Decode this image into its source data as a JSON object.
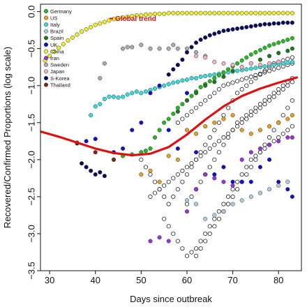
{
  "chart_data": {
    "type": "scatter",
    "xlabel": "Days since outbreak",
    "ylabel": "Recovered/Confirmed Proportions (log scale)",
    "xlim": [
      28,
      85
    ],
    "ylim": [
      -3.5,
      0.1
    ],
    "x_ticks": [
      30,
      40,
      50,
      60,
      70,
      80
    ],
    "y_ticks": [
      0.0,
      -0.5,
      -1.0,
      -1.5,
      -2.0,
      -2.5,
      -3.0,
      -3.5
    ],
    "x_tick_labels": [
      "30",
      "40",
      "50",
      "60",
      "70",
      "80"
    ],
    "y_tick_labels": [
      "0.0",
      "−0.5",
      "−1.0",
      "−1.5",
      "−2.0",
      "−2.5",
      "−3.0",
      "−3.5"
    ],
    "legend_position": "top-left",
    "legend": [
      {
        "name": "Germany",
        "color": "#22bb22"
      },
      {
        "name": "US",
        "color": "#e8a020"
      },
      {
        "name": "Italy",
        "color": "#33dddd"
      },
      {
        "name": "Brazil",
        "color": "#aaccdd"
      },
      {
        "name": "Spain",
        "color": "#1a7a1a"
      },
      {
        "name": "UK",
        "color": "#1010cc"
      },
      {
        "name": "China",
        "color": "#eeee22"
      },
      {
        "name": "Iran",
        "color": "#9933dd"
      },
      {
        "name": "Sweden",
        "color": "#aaaaaa"
      },
      {
        "name": "Japan",
        "color": "#f0b0c8"
      },
      {
        "name": "S-Korea",
        "color": "#0a0a60"
      },
      {
        "name": "Thailand",
        "color": "#7a2a10"
      }
    ],
    "annotation": "Global trend",
    "trend_color": "#dd1111",
    "trend": {
      "x": [
        28,
        32,
        36,
        40,
        44,
        48,
        52,
        56,
        60,
        64,
        68,
        72,
        76,
        80,
        84
      ],
      "y": [
        -1.62,
        -1.69,
        -1.77,
        -1.85,
        -1.91,
        -1.94,
        -1.92,
        -1.83,
        -1.66,
        -1.46,
        -1.28,
        -1.14,
        -1.04,
        -0.96,
        -0.89
      ]
    },
    "series": [
      {
        "name": "China",
        "x": [
          29,
          30,
          31,
          32,
          33,
          34,
          35,
          36,
          37,
          38,
          39,
          40,
          41,
          42,
          43,
          44,
          45,
          46,
          47,
          48,
          49,
          50,
          51,
          52,
          53,
          54,
          55,
          56,
          57,
          58,
          59,
          60,
          61,
          62,
          63,
          64,
          65,
          66,
          67,
          68,
          69,
          70,
          71,
          72,
          73,
          74,
          75,
          76,
          77,
          78,
          79,
          80,
          81,
          82,
          83
        ],
        "y": [
          -0.66,
          -0.6,
          -0.54,
          -0.49,
          -0.44,
          -0.39,
          -0.35,
          -0.31,
          -0.27,
          -0.24,
          -0.21,
          -0.18,
          -0.16,
          -0.14,
          -0.12,
          -0.1,
          -0.09,
          -0.08,
          -0.07,
          -0.06,
          -0.05,
          -0.05,
          -0.04,
          -0.04,
          -0.03,
          -0.03,
          -0.03,
          -0.02,
          -0.02,
          -0.02,
          -0.02,
          -0.02,
          -0.02,
          -0.02,
          -0.02,
          -0.02,
          -0.02,
          -0.02,
          -0.02,
          -0.02,
          -0.02,
          -0.02,
          -0.02,
          -0.02,
          -0.02,
          -0.02,
          -0.02,
          -0.02,
          -0.02,
          -0.02,
          -0.02,
          -0.02,
          -0.02,
          -0.02,
          -0.02
        ]
      },
      {
        "name": "S-Korea",
        "x": [
          36,
          37,
          38,
          39,
          40,
          41,
          42,
          56,
          57,
          58,
          59,
          60,
          61,
          62,
          63,
          64,
          65,
          66,
          67,
          68,
          69,
          70,
          71,
          72,
          73,
          74,
          75,
          76,
          77,
          78,
          79,
          80,
          81,
          82,
          83
        ],
        "y": [
          -1.78,
          -2.05,
          -2.1,
          -2.15,
          -2.2,
          -2.17,
          -2.22,
          -0.85,
          -0.78,
          -0.72,
          -0.65,
          -0.55,
          -0.48,
          -0.42,
          -0.38,
          -0.35,
          -0.32,
          -0.3,
          -0.28,
          -0.26,
          -0.25,
          -0.24,
          -0.23,
          -0.22,
          -0.21,
          -0.2,
          -0.19,
          -0.18,
          -0.17,
          -0.17,
          -0.16,
          -0.16,
          -0.15,
          -0.15,
          -0.15
        ]
      },
      {
        "name": "Italy",
        "x": [
          39,
          40,
          41,
          42,
          43,
          44,
          45,
          46,
          47,
          48,
          49,
          50,
          51,
          52,
          53,
          54,
          55,
          56,
          57,
          58,
          59,
          60,
          61,
          62,
          63,
          64,
          65,
          66,
          67,
          68,
          69,
          70,
          71,
          72,
          73,
          74,
          75,
          76,
          77,
          78,
          79,
          80,
          81,
          82,
          83
        ],
        "y": [
          -1.4,
          -1.28,
          -1.25,
          -1.18,
          -1.15,
          -1.15,
          -1.16,
          -1.15,
          -1.12,
          -1.1,
          -1.08,
          -1.1,
          -1.08,
          -1.06,
          -1.04,
          -1.02,
          -1.0,
          -0.98,
          -0.96,
          -0.95,
          -0.93,
          -0.92,
          -0.9,
          -0.9,
          -0.88,
          -0.87,
          -0.86,
          -0.85,
          -0.84,
          -0.83,
          -0.82,
          -0.81,
          -0.8,
          -0.79,
          -0.78,
          -0.77,
          -0.76,
          -0.75,
          -0.74,
          -0.73,
          -0.72,
          -0.71,
          -0.7,
          -0.69,
          -0.68
        ]
      },
      {
        "name": "Germany",
        "x": [
          44,
          46,
          48,
          50,
          51,
          52,
          53,
          54,
          55,
          56,
          57,
          58,
          59,
          60,
          61,
          62,
          63,
          64,
          65,
          66,
          67,
          68,
          69,
          70,
          71,
          72,
          73,
          74,
          75,
          76,
          77,
          78,
          79,
          80,
          81,
          82,
          83
        ],
        "y": [
          -2.0,
          -1.95,
          -1.93,
          -1.9,
          -1.88,
          -1.85,
          -1.7,
          -1.6,
          -1.5,
          -1.45,
          -1.38,
          -1.3,
          -1.25,
          -1.2,
          -1.14,
          -1.08,
          -1.02,
          -0.98,
          -0.94,
          -0.9,
          -0.86,
          -0.82,
          -0.78,
          -0.74,
          -0.7,
          -0.66,
          -0.62,
          -0.58,
          -0.55,
          -0.52,
          -0.49,
          -0.46,
          -0.44,
          -0.42,
          -0.4,
          -0.38,
          -0.36
        ]
      },
      {
        "name": "UK",
        "x": [
          38,
          40,
          44,
          46,
          48,
          50,
          52,
          54,
          56,
          58,
          60,
          62,
          64,
          66,
          68,
          70,
          72,
          74,
          76,
          78,
          80,
          82,
          83
        ],
        "y": [
          -1.75,
          -1.72,
          -1.9,
          -1.85,
          -1.6,
          -1.5,
          -1.1,
          -1.0,
          -1.6,
          -1.85,
          -1.1,
          -1.9,
          -2.2,
          -2.2,
          -2.1,
          -2.3,
          -2.3,
          -2.3,
          -2.1,
          -2.0,
          -2.3,
          -2.4,
          -2.5
        ]
      },
      {
        "name": "US",
        "x": [
          50,
          52,
          54,
          56,
          58,
          60,
          62,
          64,
          66,
          68,
          70,
          72,
          74,
          76,
          78,
          80,
          82,
          83
        ],
        "y": [
          -2.2,
          -2.15,
          -2.3,
          -1.95,
          -2.0,
          -1.6,
          -1.65,
          -1.55,
          -1.5,
          -1.45,
          -1.4,
          -1.6,
          -1.65,
          -1.6,
          -1.55,
          -1.5,
          -1.45,
          -1.4
        ]
      },
      {
        "name": "Spain",
        "x": [
          58,
          60,
          62,
          64,
          66,
          68,
          70,
          72,
          74,
          76,
          78,
          80,
          82,
          83
        ],
        "y": [
          -1.35,
          -1.2,
          -1.1,
          -1.0,
          -0.95,
          -0.88,
          -0.8,
          -0.75,
          -0.7,
          -0.65,
          -0.6,
          -0.56,
          -0.53,
          -0.5
        ]
      },
      {
        "name": "Iran",
        "x": [
          52,
          54,
          56,
          60,
          62,
          64,
          66,
          68,
          70,
          72,
          74,
          76,
          78,
          80,
          82,
          83
        ],
        "y": [
          -3.1,
          -3.05,
          -3.1,
          -2.7,
          -2.4,
          -2.2,
          -2.25,
          -2.3,
          -2.35,
          -2.0,
          -1.9,
          -1.85,
          -1.8,
          -1.75,
          -1.7,
          -1.7
        ]
      },
      {
        "name": "Sweden",
        "x": [
          41,
          42,
          46,
          47,
          48,
          50,
          52,
          54,
          56,
          57,
          58,
          60,
          62,
          64
        ],
        "y": [
          -0.9,
          -0.7,
          -0.5,
          -0.48,
          -0.48,
          -0.45,
          -0.5,
          -0.5,
          -0.5,
          -0.45,
          -0.5,
          -0.5,
          -0.55,
          -0.6
        ]
      },
      {
        "name": "Japan",
        "x": [
          62,
          64,
          66,
          68,
          70,
          72,
          74,
          76,
          78,
          80
        ],
        "y": [
          -0.6,
          -0.62,
          -0.68,
          -0.7,
          -0.72,
          -0.75,
          -0.7,
          -0.72,
          -0.7,
          -0.68
        ]
      },
      {
        "name": "Brazil",
        "x": [
          60,
          62,
          64,
          66,
          68,
          70,
          72,
          74,
          76,
          78,
          80,
          82
        ],
        "y": [
          -2.55,
          -2.6,
          -2.8,
          -2.75,
          -2.7,
          -2.6,
          -2.55,
          -2.5,
          -2.45,
          -2.4,
          -2.35,
          -2.3
        ]
      },
      {
        "name": "Thailand",
        "x": [
          36,
          40,
          44
        ],
        "y": [
          -1.77,
          -1.9,
          -2.0
        ]
      }
    ],
    "other_countries": {
      "x": [
        50,
        51,
        52,
        53,
        54,
        55,
        56,
        57,
        58,
        59,
        60,
        61,
        62,
        63,
        64,
        65,
        66,
        67,
        68,
        69,
        70,
        71,
        72,
        73,
        74,
        75,
        76,
        77,
        78,
        79,
        80,
        81,
        82,
        83,
        55,
        56,
        57,
        58,
        59,
        60,
        61,
        62,
        63,
        64,
        65,
        66,
        67,
        68,
        69,
        70,
        71,
        72,
        73,
        74,
        75,
        76,
        77,
        78,
        79,
        80,
        81,
        82,
        83,
        58,
        59,
        60,
        61,
        62,
        63,
        64,
        65,
        66,
        67,
        68,
        69,
        70,
        71,
        72,
        73,
        74,
        75,
        76,
        77,
        78,
        79,
        80,
        81,
        82,
        83,
        60,
        61,
        62,
        63,
        64,
        65,
        66,
        67,
        68,
        69,
        70,
        71,
        72,
        73,
        74,
        75,
        76,
        77,
        78,
        79,
        80,
        81,
        82,
        83,
        62,
        63,
        64,
        65,
        66,
        67,
        68,
        69,
        70,
        71,
        72,
        73,
        74,
        75,
        76,
        77,
        78,
        79,
        80,
        81,
        82,
        83,
        52,
        53,
        54,
        55,
        56,
        57,
        58,
        59,
        60,
        61,
        62,
        63,
        64,
        65,
        66,
        67,
        68,
        69,
        70,
        71,
        72,
        73,
        74,
        75,
        76,
        77,
        78,
        79,
        80,
        81,
        82,
        83
      ],
      "y": [
        -2.0,
        -2.1,
        -2.2,
        -2.3,
        -2.4,
        -2.5,
        -2.6,
        -2.5,
        -2.4,
        -2.3,
        -2.2,
        -2.1,
        -2.0,
        -1.9,
        -1.8,
        -1.7,
        -1.6,
        -1.5,
        -1.4,
        -1.3,
        -1.2,
        -1.1,
        -1.05,
        -1.0,
        -0.95,
        -0.9,
        -0.85,
        -0.8,
        -0.75,
        -0.7,
        -0.68,
        -0.66,
        -0.64,
        -0.62,
        -2.8,
        -2.9,
        -3.0,
        -3.1,
        -3.2,
        -3.3,
        -3.25,
        -3.2,
        -3.1,
        -3.0,
        -2.9,
        -2.8,
        -2.7,
        -2.6,
        -2.5,
        -2.4,
        -2.3,
        -2.2,
        -2.1,
        -2.0,
        -1.95,
        -1.9,
        -1.85,
        -1.8,
        -1.75,
        -1.7,
        -1.65,
        -1.6,
        -1.55,
        -1.5,
        -1.45,
        -1.4,
        -1.35,
        -1.3,
        -1.25,
        -1.2,
        -1.15,
        -1.1,
        -1.05,
        -1.0,
        -0.98,
        -0.96,
        -0.94,
        -0.92,
        -0.9,
        -0.88,
        -0.86,
        -0.84,
        -0.82,
        -0.8,
        -0.78,
        -0.76,
        -0.74,
        -0.72,
        -0.7,
        -2.6,
        -2.5,
        -2.4,
        -2.3,
        -2.2,
        -2.1,
        -2.0,
        -1.9,
        -1.8,
        -1.7,
        -1.6,
        -1.5,
        -1.45,
        -1.4,
        -1.35,
        -1.3,
        -1.25,
        -1.2,
        -1.15,
        -1.1,
        -1.05,
        -1.0,
        -0.95,
        -0.9,
        -3.3,
        -3.2,
        -3.1,
        -3.0,
        -2.9,
        -2.8,
        -2.7,
        -2.6,
        -2.5,
        -2.4,
        -2.3,
        -2.2,
        -2.1,
        -2.0,
        -1.9,
        -1.8,
        -1.7,
        -1.6,
        -1.5,
        -1.4,
        -1.3,
        -1.2,
        -2.5,
        -2.45,
        -2.4,
        -2.35,
        -2.3,
        -2.25,
        -2.2,
        -2.15,
        -2.1,
        -2.05,
        -2.0,
        -1.95,
        -1.9,
        -1.85,
        -1.8,
        -1.75,
        -1.7,
        -1.65,
        -1.6,
        -1.55,
        -1.5,
        -1.45,
        -1.4,
        -1.35,
        -1.3,
        -1.25,
        -1.2,
        -1.15,
        -1.1,
        -1.05,
        -1.0,
        -0.95
      ]
    }
  }
}
